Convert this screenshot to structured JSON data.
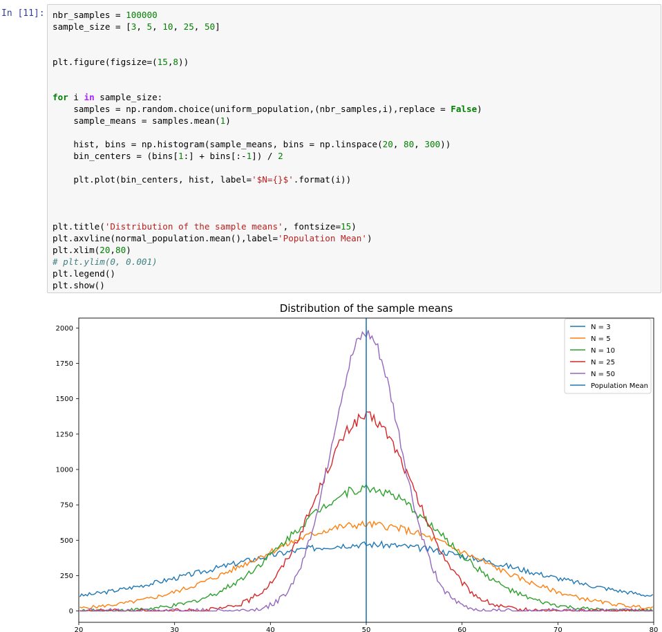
{
  "cell": {
    "prompt": "In [11]:",
    "code_lines": [
      [
        [
          "t",
          "nbr_samples = "
        ],
        [
          "num",
          "100000"
        ]
      ],
      [
        [
          "t",
          "sample_size = ["
        ],
        [
          "num",
          "3"
        ],
        [
          "t",
          ", "
        ],
        [
          "num",
          "5"
        ],
        [
          "t",
          ", "
        ],
        [
          "num",
          "10"
        ],
        [
          "t",
          ", "
        ],
        [
          "num",
          "25"
        ],
        [
          "t",
          ", "
        ],
        [
          "num",
          "50"
        ],
        [
          "t",
          "]"
        ]
      ],
      [],
      [],
      [
        [
          "t",
          "plt.figure(figsize=("
        ],
        [
          "num",
          "15"
        ],
        [
          "t",
          ","
        ],
        [
          "num",
          "8"
        ],
        [
          "t",
          "))"
        ]
      ],
      [],
      [],
      [
        [
          "kw",
          "for"
        ],
        [
          "t",
          " i "
        ],
        [
          "op",
          "in"
        ],
        [
          "t",
          " sample_size:"
        ]
      ],
      [
        [
          "t",
          "    samples = np.random.choice(uniform_population,(nbr_samples,i),replace = "
        ],
        [
          "kw",
          "False"
        ],
        [
          "t",
          ")"
        ]
      ],
      [
        [
          "t",
          "    sample_means = samples.mean("
        ],
        [
          "num",
          "1"
        ],
        [
          "t",
          ")"
        ]
      ],
      [],
      [
        [
          "t",
          "    hist, bins = np.histogram(sample_means, bins = np.linspace("
        ],
        [
          "num",
          "20"
        ],
        [
          "t",
          ", "
        ],
        [
          "num",
          "80"
        ],
        [
          "t",
          ", "
        ],
        [
          "num",
          "300"
        ],
        [
          "t",
          "))"
        ]
      ],
      [
        [
          "t",
          "    bin_centers = (bins["
        ],
        [
          "num",
          "1"
        ],
        [
          "t",
          ":] + bins[:-"
        ],
        [
          "num",
          "1"
        ],
        [
          "t",
          "]) / "
        ],
        [
          "num",
          "2"
        ]
      ],
      [],
      [
        [
          "t",
          "    plt.plot(bin_centers, hist, label="
        ],
        [
          "str",
          "'$N={}$'"
        ],
        [
          "t",
          ".format(i))"
        ]
      ],
      [],
      [],
      [],
      [
        [
          "t",
          "plt.title("
        ],
        [
          "str",
          "'Distribution of the sample means'"
        ],
        [
          "t",
          ", fontsize="
        ],
        [
          "num",
          "15"
        ],
        [
          "t",
          ")"
        ]
      ],
      [
        [
          "t",
          "plt.axvline(normal_population.mean(),label="
        ],
        [
          "str",
          "'Population Mean'"
        ],
        [
          "t",
          ")"
        ]
      ],
      [
        [
          "t",
          "plt.xlim("
        ],
        [
          "num",
          "20"
        ],
        [
          "t",
          ","
        ],
        [
          "num",
          "80"
        ],
        [
          "t",
          ")"
        ]
      ],
      [
        [
          "cm",
          "# plt.ylim(0, 0.001)"
        ]
      ],
      [
        [
          "t",
          "plt.legend()"
        ]
      ],
      [
        [
          "t",
          "plt.show()"
        ]
      ]
    ]
  },
  "chart_data": {
    "type": "line",
    "title": "Distribution of the sample means",
    "xlabel": "",
    "ylabel": "",
    "xlim": [
      20,
      80
    ],
    "ylim": [
      -80,
      2070
    ],
    "xticks": [
      20,
      30,
      40,
      50,
      60,
      70,
      80
    ],
    "yticks": [
      0,
      250,
      500,
      750,
      1000,
      1250,
      1500,
      1750,
      2000
    ],
    "grid": false,
    "legend_position": "top-right",
    "series": [
      {
        "name": "N = 3",
        "color": "#1f77b4",
        "peak": 470,
        "width": 16,
        "floor": 30,
        "noise": 22,
        "seed": 3
      },
      {
        "name": "N = 5",
        "color": "#ff7f0e",
        "peak": 610,
        "width": 11.5,
        "floor": 0,
        "noise": 25,
        "seed": 5
      },
      {
        "name": "N = 10",
        "color": "#2ca02c",
        "peak": 865,
        "width": 8.0,
        "floor": 0,
        "noise": 32,
        "seed": 10
      },
      {
        "name": "N = 25",
        "color": "#d62728",
        "peak": 1370,
        "width": 5.1,
        "floor": 0,
        "noise": 40,
        "seed": 25
      },
      {
        "name": "N = 50",
        "color": "#9467bd",
        "peak": 1950,
        "width": 3.6,
        "floor": 0,
        "noise": 45,
        "seed": 50
      }
    ],
    "vline": {
      "name": "Population Mean",
      "x": 50,
      "color": "#1f77b4"
    },
    "bins": {
      "start": 20,
      "end": 80,
      "count": 299
    }
  }
}
